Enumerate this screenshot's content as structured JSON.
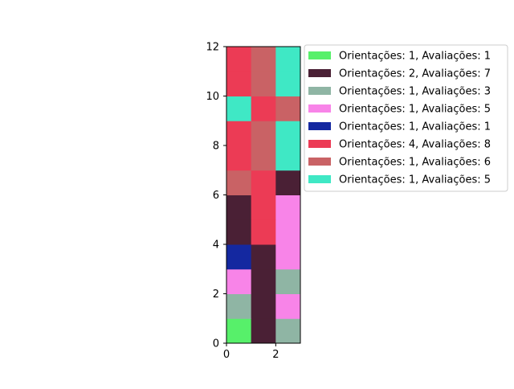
{
  "chart_data": {
    "type": "heatmap",
    "title": "",
    "xlabel": "",
    "ylabel": "",
    "xlim": [
      0,
      3
    ],
    "ylim": [
      0,
      12
    ],
    "xticks": [
      0,
      2
    ],
    "yticks": [
      0,
      2,
      4,
      6,
      8,
      10,
      12
    ],
    "grid": false,
    "legend_position": "upper-right-outside",
    "categories": [
      {
        "label": "Orientações: 1, Avaliações: 1",
        "color": "#57f06a"
      },
      {
        "label": "Orientações: 2, Avaliações: 7",
        "color": "#4a2035"
      },
      {
        "label": "Orientações: 1, Avaliações: 3",
        "color": "#8fb5a4"
      },
      {
        "label": "Orientações: 1, Avaliações: 5",
        "color": "#f884e8"
      },
      {
        "label": "Orientações: 1, Avaliações: 1",
        "color": "#1428a0"
      },
      {
        "label": "Orientações: 4, Avaliações: 8",
        "color": "#ec3b55"
      },
      {
        "label": "Orientações: 1, Avaliações: 6",
        "color": "#c96265"
      },
      {
        "label": "Orientações: 1, Avaliações: 5",
        "color": "#3fe8c5"
      }
    ],
    "grid_cells": [
      [
        0,
        1,
        2
      ],
      [
        2,
        1,
        3
      ],
      [
        3,
        1,
        2
      ],
      [
        4,
        1,
        3
      ],
      [
        1,
        5,
        3
      ],
      [
        1,
        5,
        3
      ],
      [
        6,
        5,
        1
      ],
      [
        5,
        6,
        7
      ],
      [
        5,
        6,
        7
      ],
      [
        7,
        5,
        6
      ],
      [
        5,
        6,
        7
      ],
      [
        5,
        6,
        7
      ]
    ]
  }
}
